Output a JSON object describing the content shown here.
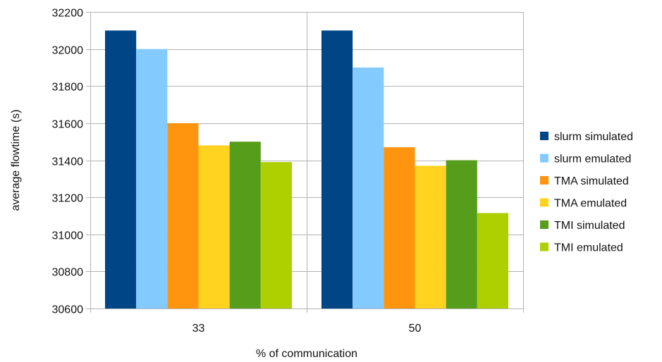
{
  "chart_data": {
    "type": "bar",
    "xlabel": "% of communication",
    "ylabel": "average flowtime (s)",
    "ylim": [
      30600,
      32200
    ],
    "yticks": [
      30600,
      30800,
      31000,
      31200,
      31400,
      31600,
      31800,
      32000,
      32200
    ],
    "categories": [
      "33",
      "50"
    ],
    "grid": true,
    "legend_position": "right",
    "series": [
      {
        "name": "slurm simulated",
        "color": "#004586",
        "values": [
          32100,
          32100
        ]
      },
      {
        "name": "slurm emulated",
        "color": "#83caff",
        "values": [
          32000,
          31900
        ]
      },
      {
        "name": "TMA simulated",
        "color": "#ff950e",
        "values": [
          31600,
          31470
        ]
      },
      {
        "name": "TMA emulated",
        "color": "#ffd320",
        "values": [
          31480,
          31370
        ]
      },
      {
        "name": "TMI simulated",
        "color": "#579d1c",
        "values": [
          31500,
          31400
        ]
      },
      {
        "name": "TMI emulated",
        "color": "#aecf00",
        "values": [
          31390,
          31115
        ]
      }
    ]
  }
}
